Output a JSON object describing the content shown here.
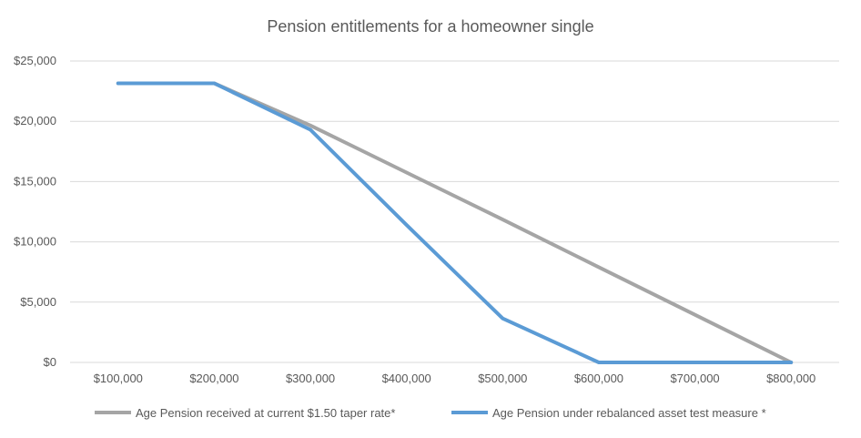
{
  "chart_data": {
    "type": "line",
    "title": "Pension entitlements for a homeowner single",
    "xlabel": "",
    "ylabel": "",
    "categories": [
      "$100,000",
      "$200,000",
      "$300,000",
      "$400,000",
      "$500,000",
      "$600,000",
      "$700,000",
      "$800,000"
    ],
    "y_ticks": [
      "$0",
      "$5,000",
      "$10,000",
      "$15,000",
      "$20,000",
      "$25,000"
    ],
    "ylim": [
      0,
      25000
    ],
    "grid": true,
    "legend_position": "bottom",
    "series": [
      {
        "name": "Age Pension received at current $1.50 taper rate*",
        "color": "#a5a5a5",
        "values": [
          23150,
          23150,
          19650,
          15750,
          11850,
          7900,
          3950,
          0
        ]
      },
      {
        "name": "Age Pension under rebalanced asset test measure *",
        "color": "#5b9bd5",
        "values": [
          23150,
          23150,
          19300,
          11400,
          3650,
          0,
          0,
          0
        ]
      }
    ]
  }
}
